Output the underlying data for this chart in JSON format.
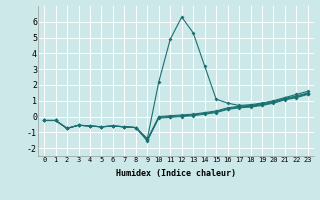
{
  "title": "",
  "xlabel": "Humidex (Indice chaleur)",
  "xlim": [
    -0.5,
    23.5
  ],
  "ylim": [
    -2.5,
    7.0
  ],
  "xticks": [
    0,
    1,
    2,
    3,
    4,
    5,
    6,
    7,
    8,
    9,
    10,
    11,
    12,
    13,
    14,
    15,
    16,
    17,
    18,
    19,
    20,
    21,
    22,
    23
  ],
  "yticks": [
    -2,
    -1,
    0,
    1,
    2,
    3,
    4,
    5,
    6
  ],
  "bg_color": "#cce8e8",
  "grid_color": "#ffffff",
  "line_color": "#1a7070",
  "lines": [
    {
      "x": [
        0,
        1,
        2,
        3,
        4,
        5,
        6,
        7,
        8,
        9,
        10,
        11,
        12,
        13,
        14,
        15,
        16,
        17,
        18,
        19,
        20,
        21,
        22,
        23
      ],
      "y": [
        -0.25,
        -0.25,
        -0.75,
        -0.55,
        -0.6,
        -0.65,
        -0.6,
        -0.65,
        -0.7,
        -1.4,
        2.2,
        4.9,
        6.3,
        5.3,
        3.2,
        1.1,
        0.85,
        0.7,
        0.75,
        0.85,
        1.0,
        1.2,
        1.4,
        1.6
      ]
    },
    {
      "x": [
        0,
        1,
        2,
        3,
        4,
        5,
        6,
        7,
        8,
        9,
        10,
        11,
        12,
        13,
        14,
        15,
        16,
        17,
        18,
        19,
        20,
        21,
        22,
        23
      ],
      "y": [
        -0.25,
        -0.25,
        -0.75,
        -0.55,
        -0.6,
        -0.65,
        -0.6,
        -0.65,
        -0.7,
        -1.55,
        -0.05,
        0.0,
        0.05,
        0.1,
        0.2,
        0.3,
        0.5,
        0.6,
        0.65,
        0.75,
        0.9,
        1.1,
        1.25,
        1.45
      ]
    },
    {
      "x": [
        0,
        1,
        2,
        3,
        4,
        5,
        6,
        7,
        8,
        9,
        10,
        11,
        12,
        13,
        14,
        15,
        16,
        17,
        18,
        19,
        20,
        21,
        22,
        23
      ],
      "y": [
        -0.25,
        -0.25,
        -0.75,
        -0.55,
        -0.6,
        -0.65,
        -0.6,
        -0.65,
        -0.7,
        -1.5,
        -0.1,
        -0.05,
        0.0,
        0.05,
        0.15,
        0.25,
        0.45,
        0.55,
        0.6,
        0.7,
        0.85,
        1.05,
        1.2,
        1.4
      ]
    },
    {
      "x": [
        0,
        1,
        2,
        3,
        4,
        5,
        6,
        7,
        8,
        9,
        10,
        11,
        12,
        13,
        14,
        15,
        16,
        17,
        18,
        19,
        20,
        21,
        22,
        23
      ],
      "y": [
        -0.25,
        -0.25,
        -0.75,
        -0.55,
        -0.6,
        -0.65,
        -0.6,
        -0.65,
        -0.7,
        -1.45,
        0.0,
        0.05,
        0.1,
        0.15,
        0.25,
        0.35,
        0.55,
        0.65,
        0.7,
        0.8,
        0.95,
        1.15,
        1.3,
        1.5
      ]
    }
  ],
  "xlabel_fontsize": 6.0,
  "xtick_fontsize": 5.0,
  "ytick_fontsize": 6.0,
  "linewidth": 0.8,
  "markersize": 2.0
}
